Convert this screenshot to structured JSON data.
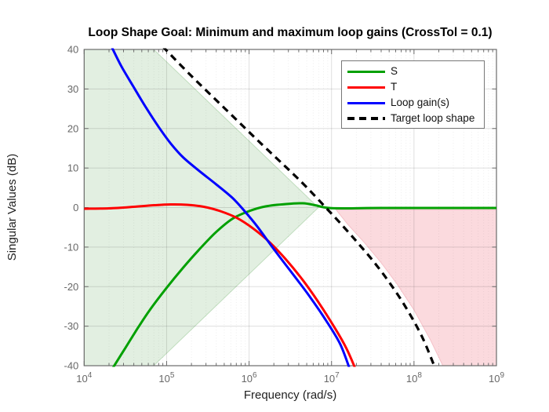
{
  "figure": {
    "background": "#ffffff",
    "title": "Loop Shape Goal: Minimum and maximum loop gains (CrossTol = 0.1)"
  },
  "legend": {
    "items": [
      {
        "label": "S",
        "color": "#00a000",
        "dash": false
      },
      {
        "label": "T",
        "color": "#ff0000",
        "dash": false
      },
      {
        "label": "Loop gain(s)",
        "color": "#0000ff",
        "dash": false
      },
      {
        "label": "Target loop shape",
        "color": "#000000",
        "dash": true
      }
    ]
  },
  "chart_data": {
    "type": "line",
    "title": "Loop Shape Goal: Minimum and maximum loop gains (CrossTol = 0.1)",
    "xlabel": "Frequency (rad/s)",
    "ylabel": "Singular Values (dB)",
    "x_scale": "log10",
    "xlim_log10": [
      4,
      9
    ],
    "ylim": [
      -40,
      40
    ],
    "x_ticks": [
      {
        "log10": 4,
        "base": "10",
        "exp": "4"
      },
      {
        "log10": 5,
        "base": "10",
        "exp": "5"
      },
      {
        "log10": 6,
        "base": "10",
        "exp": "6"
      },
      {
        "log10": 7,
        "base": "10",
        "exp": "7"
      },
      {
        "log10": 8,
        "base": "10",
        "exp": "8"
      },
      {
        "log10": 9,
        "base": "10",
        "exp": "9"
      }
    ],
    "y_ticks": [
      40,
      30,
      20,
      10,
      0,
      -10,
      -20,
      -30,
      -40
    ],
    "grid": {
      "major": true,
      "minor_x": true
    },
    "colors": {
      "axis": "#6b6b6b",
      "tick_label": "#686868",
      "label_text": "#1f1f1f",
      "title_text": "#000000",
      "grid_major": "rgba(38,38,38,0.15)",
      "grid_minor": "rgba(38,38,38,0.08)"
    },
    "regions": [
      {
        "name": "min-loop-gain-bound",
        "fill": "#e2efe1",
        "edge": "#c0ddbe",
        "points": [
          [
            4.0,
            40
          ],
          [
            4.843,
            40
          ],
          [
            6.84,
            0
          ],
          [
            4.843,
            -40
          ],
          [
            4.0,
            -40
          ]
        ]
      },
      {
        "name": "max-loop-gain-bound",
        "fill": "#fbdade",
        "edge": "#f5c0c7",
        "points": [
          [
            7.055,
            -0.55
          ],
          [
            9.0,
            -0.55
          ],
          [
            9.0,
            -40
          ],
          [
            8.35,
            -40
          ],
          [
            8.2,
            -33.5
          ],
          [
            8.0,
            -25.9
          ],
          [
            7.8,
            -19.5
          ],
          [
            7.6,
            -13.9
          ],
          [
            7.4,
            -8.9
          ],
          [
            7.2,
            -4.3
          ],
          [
            7.055,
            -0.55
          ]
        ]
      }
    ],
    "series": [
      {
        "name": "S",
        "color": "#00a000",
        "style": "solid",
        "width": 3,
        "points": [
          [
            4.35,
            -40.5
          ],
          [
            4.5,
            -35.5
          ],
          [
            4.65,
            -30.5
          ],
          [
            4.8,
            -25.8
          ],
          [
            5.0,
            -20.3
          ],
          [
            5.2,
            -15.2
          ],
          [
            5.4,
            -10.5
          ],
          [
            5.6,
            -6.2
          ],
          [
            5.8,
            -2.8
          ],
          [
            6.0,
            -0.9
          ],
          [
            6.2,
            0.3
          ],
          [
            6.45,
            0.9
          ],
          [
            6.65,
            1.1
          ],
          [
            6.8,
            0.6
          ],
          [
            6.9,
            0.1
          ],
          [
            7.0,
            -0.15
          ],
          [
            7.2,
            -0.2
          ],
          [
            7.6,
            -0.1
          ],
          [
            9.0,
            -0.1
          ]
        ]
      },
      {
        "name": "T",
        "color": "#ff0000",
        "style": "solid",
        "width": 3,
        "points": [
          [
            4.0,
            -0.3
          ],
          [
            4.3,
            -0.2
          ],
          [
            4.6,
            0.2
          ],
          [
            4.85,
            0.6
          ],
          [
            5.05,
            0.8
          ],
          [
            5.25,
            0.7
          ],
          [
            5.45,
            0.2
          ],
          [
            5.65,
            -0.9
          ],
          [
            5.85,
            -2.6
          ],
          [
            6.05,
            -5.3
          ],
          [
            6.25,
            -8.8
          ],
          [
            6.45,
            -13.2
          ],
          [
            6.65,
            -18.3
          ],
          [
            6.85,
            -24.2
          ],
          [
            7.05,
            -30.8
          ],
          [
            7.18,
            -35.6
          ],
          [
            7.29,
            -40.8
          ]
        ]
      },
      {
        "name": "Loop gain(s)",
        "color": "#0000ff",
        "style": "solid",
        "width": 3,
        "points": [
          [
            4.33,
            40.8
          ],
          [
            4.45,
            35.8
          ],
          [
            4.6,
            30.5
          ],
          [
            4.75,
            25.3
          ],
          [
            4.9,
            20.5
          ],
          [
            5.05,
            16.2
          ],
          [
            5.2,
            12.7
          ],
          [
            5.4,
            9.2
          ],
          [
            5.6,
            5.9
          ],
          [
            5.8,
            2.4
          ],
          [
            5.95,
            -1.0
          ],
          [
            6.1,
            -4.8
          ],
          [
            6.3,
            -10.5
          ],
          [
            6.5,
            -16.0
          ],
          [
            6.7,
            -21.5
          ],
          [
            6.9,
            -27.5
          ],
          [
            7.1,
            -34.3
          ],
          [
            7.22,
            -40.8
          ]
        ]
      },
      {
        "name": "Target loop shape",
        "color": "#000000",
        "style": "dashed",
        "width": 3.2,
        "points": [
          [
            4.95,
            40.8
          ],
          [
            5.3,
            33.3
          ],
          [
            5.7,
            25.2
          ],
          [
            6.1,
            17.1
          ],
          [
            6.5,
            9.2
          ],
          [
            6.7,
            5.1
          ],
          [
            6.93,
            0
          ],
          [
            7.1,
            -3.8
          ],
          [
            7.3,
            -8.5
          ],
          [
            7.5,
            -13.4
          ],
          [
            7.7,
            -18.9
          ],
          [
            7.9,
            -25.2
          ],
          [
            8.1,
            -32.8
          ],
          [
            8.26,
            -40.8
          ]
        ]
      }
    ]
  }
}
